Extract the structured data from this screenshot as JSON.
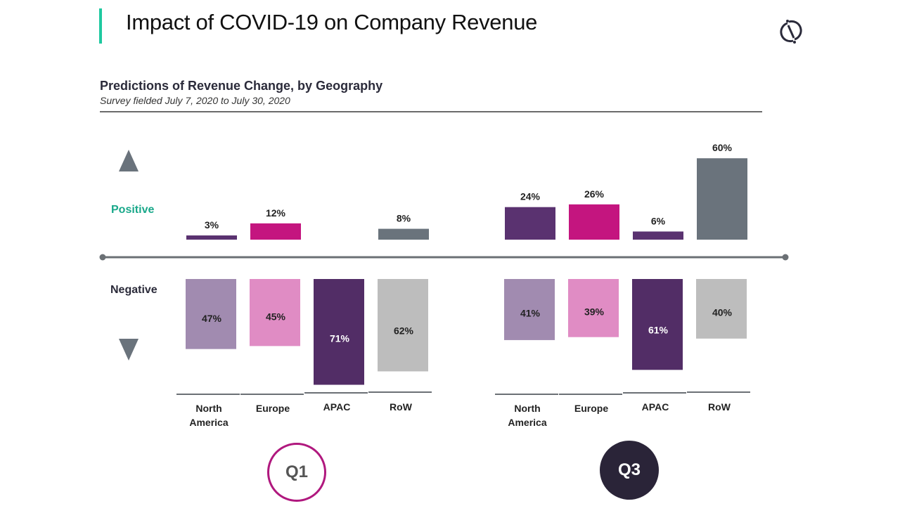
{
  "page": {
    "title": "Impact of COVID-19 on Company Revenue",
    "logo_icon": "split-circle-logo-icon",
    "accent_color": "#1fc9a0"
  },
  "chart_data": {
    "type": "bar",
    "title": "Predictions of Revenue Change, by Geography",
    "subtitle": "Survey fielded July 7, 2020 to July 30, 2020",
    "positive_label": "Positive",
    "negative_label": "Negative",
    "positive_icon": "triangle-up-icon",
    "negative_icon": "triangle-down-icon",
    "categories": [
      "North America",
      "Europe",
      "APAC",
      "RoW"
    ],
    "category_lines": [
      [
        "North",
        "America"
      ],
      [
        "Europe"
      ],
      [
        "APAC"
      ],
      [
        "RoW"
      ]
    ],
    "groups": [
      {
        "name": "Q1",
        "positive": [
          3,
          12,
          null,
          8
        ],
        "negative": [
          47,
          45,
          71,
          62
        ]
      },
      {
        "name": "Q3",
        "positive": [
          24,
          26,
          6,
          60
        ],
        "negative": [
          41,
          39,
          61,
          40
        ]
      }
    ],
    "unit": "%",
    "colors": {
      "positive": [
        "#5a3270",
        "#c4157f",
        "#5a3270",
        "#6a737c"
      ],
      "negative": [
        "#a18bb0",
        "#e08cc4",
        "#522d66",
        "#bdbdbd"
      ],
      "negative_label_text": [
        "#222222",
        "#222222",
        "#ffffff",
        "#222222"
      ],
      "axis": "#6b7075",
      "label": "#222222"
    },
    "legend": "none",
    "grid": false
  }
}
